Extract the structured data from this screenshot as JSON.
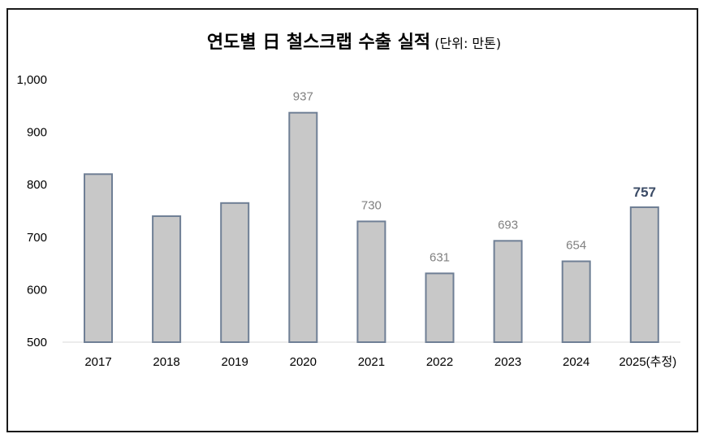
{
  "chart_data": {
    "type": "bar",
    "title": "연도별 日 철스크랩 수출 실적",
    "unit_note": "(단위: 만톤)",
    "categories": [
      "2017",
      "2018",
      "2019",
      "2020",
      "2021",
      "2022",
      "2023",
      "2024",
      "2025(추정)"
    ],
    "values": [
      820,
      740,
      765,
      937,
      730,
      631,
      693,
      654,
      757
    ],
    "data_labels": [
      "",
      "",
      "",
      "937",
      "730",
      "631",
      "693",
      "654",
      "757"
    ],
    "highlight_index": 8,
    "ylim": [
      500,
      1000
    ],
    "yticks": [
      500,
      600,
      700,
      800,
      900,
      1000
    ],
    "ytick_labels": [
      "500",
      "600",
      "700",
      "800",
      "900",
      "1,000"
    ],
    "grid": false,
    "colors": {
      "bar_fill": "#c8c8c8",
      "bar_stroke": "#6f7f95",
      "label": "#808080",
      "highlight_label": "#3b4b66"
    }
  }
}
